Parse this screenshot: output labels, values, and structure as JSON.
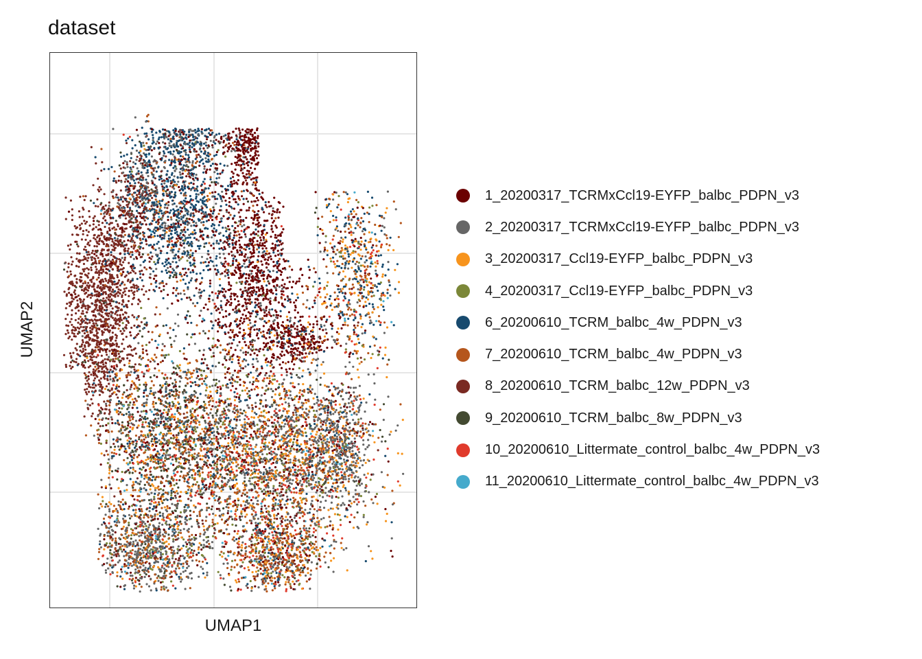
{
  "chart_data": {
    "type": "scatter",
    "title": "dataset",
    "xlabel": "UMAP1",
    "ylabel": "UMAP2",
    "xlim": [
      0,
      100
    ],
    "ylim": [
      0,
      100
    ],
    "grid": true,
    "tick_labels": false,
    "legend_placement": "right",
    "series": [
      {
        "name": "1_20200317_TCRMxCcl19-EYFP_balbc_PDPN_v3",
        "color": "#6B0000"
      },
      {
        "name": "2_20200317_TCRMxCcl19-EYFP_balbc_PDPN_v3",
        "color": "#666666"
      },
      {
        "name": "3_20200317_Ccl19-EYFP_balbc_PDPN_v3",
        "color": "#F7941D"
      },
      {
        "name": "4_20200317_Ccl19-EYFP_balbc_PDPN_v3",
        "color": "#7B8738"
      },
      {
        "name": "6_20200610_TCRM_balbc_4w_PDPN_v3",
        "color": "#174A6E"
      },
      {
        "name": "7_20200610_TCRM_balbc_4w_PDPN_v3",
        "color": "#B5561C"
      },
      {
        "name": "8_20200610_TCRM_balbc_12w_PDPN_v3",
        "color": "#7A2A22"
      },
      {
        "name": "9_20200610_TCRM_balbc_8w_PDPN_v3",
        "color": "#434A31"
      },
      {
        "name": "10_20200610_Littermate_control_balbc_4w_PDPN_v3",
        "color": "#E03A2C"
      },
      {
        "name": "11_20200610_Littermate_control_balbc_4w_PDPN_v3",
        "color": "#45AACC"
      }
    ]
  }
}
